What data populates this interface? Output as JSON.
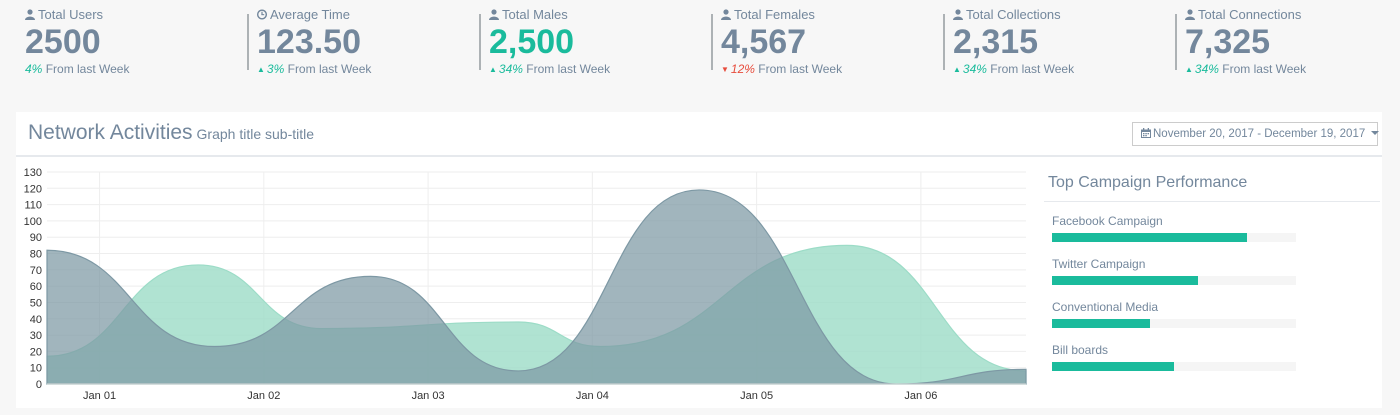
{
  "stats": [
    {
      "label": "Total Users",
      "icon": "user-icon",
      "value": "2500",
      "value_color": "normal",
      "pct": "4%",
      "trend": "none",
      "suffix": "From last Week"
    },
    {
      "label": "Average Time",
      "icon": "clock-icon",
      "value": "123.50",
      "value_color": "normal",
      "pct": "3%",
      "trend": "up",
      "suffix": "From last Week"
    },
    {
      "label": "Total Males",
      "icon": "user-icon",
      "value": "2,500",
      "value_color": "green",
      "pct": "34%",
      "trend": "up",
      "suffix": "From last Week"
    },
    {
      "label": "Total Females",
      "icon": "user-icon",
      "value": "4,567",
      "value_color": "normal",
      "pct": "12%",
      "trend": "down",
      "suffix": "From last Week"
    },
    {
      "label": "Total Collections",
      "icon": "user-icon",
      "value": "2,315",
      "value_color": "normal",
      "pct": "34%",
      "trend": "up",
      "suffix": "From last Week"
    },
    {
      "label": "Total Connections",
      "icon": "user-icon",
      "value": "7,325",
      "value_color": "normal",
      "pct": "34%",
      "trend": "up",
      "suffix": "From last Week"
    }
  ],
  "panel": {
    "title": "Network Activities",
    "subtitle": "Graph title sub-title",
    "daterange": "November 20, 2017 - December 19, 2017",
    "daterange_icon": "calendar-icon"
  },
  "chart_data": {
    "type": "area",
    "ylim": [
      0,
      130
    ],
    "yticks": [
      "0",
      "10",
      "20",
      "30",
      "40",
      "50",
      "60",
      "70",
      "80",
      "90",
      "100",
      "110",
      "120",
      "130"
    ],
    "xlim": [
      0.68,
      6.64
    ],
    "xticks": [
      {
        "x": 1,
        "label": "Jan 01"
      },
      {
        "x": 2,
        "label": "Jan 02"
      },
      {
        "x": 3,
        "label": "Jan 03"
      },
      {
        "x": 4,
        "label": "Jan 04"
      },
      {
        "x": 5,
        "label": "Jan 05"
      },
      {
        "x": 6,
        "label": "Jan 06"
      }
    ],
    "grid": true,
    "series": [
      {
        "color": "#9cdcc7",
        "points": [
          [
            0.68,
            17
          ],
          [
            1.6,
            73
          ],
          [
            2.35,
            34
          ],
          [
            3.55,
            38
          ],
          [
            4.05,
            23
          ],
          [
            5.55,
            85
          ],
          [
            6.64,
            8
          ]
        ]
      },
      {
        "color": "#7d98a4",
        "points": [
          [
            0.68,
            82
          ],
          [
            1.7,
            23
          ],
          [
            2.65,
            66
          ],
          [
            3.55,
            8
          ],
          [
            4.65,
            119
          ],
          [
            5.85,
            0
          ],
          [
            6.64,
            9
          ]
        ]
      }
    ]
  },
  "campaigns": {
    "title": "Top Campaign Performance",
    "items": [
      {
        "name": "Facebook Campaign",
        "percent": 80
      },
      {
        "name": "Twitter Campaign",
        "percent": 60
      },
      {
        "name": "Conventional Media",
        "percent": 40
      },
      {
        "name": "Bill boards",
        "percent": 50
      }
    ]
  }
}
